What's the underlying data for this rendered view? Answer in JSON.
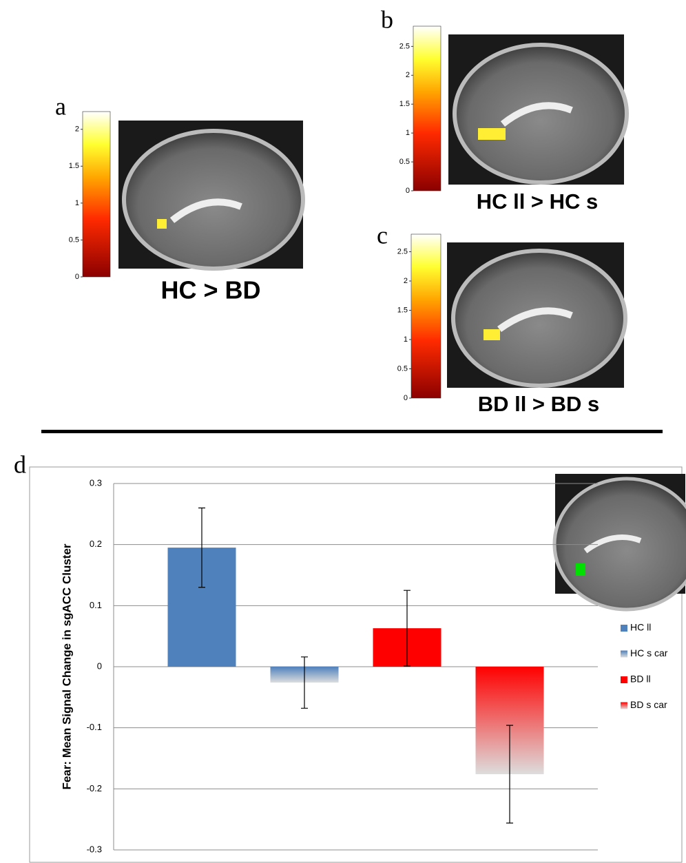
{
  "panels": [
    {
      "label": "a",
      "caption": "HC > BD",
      "colorbar": {
        "lim": [
          0,
          2.24
        ],
        "ticks": [
          0,
          0.5,
          1,
          1.5,
          2
        ]
      }
    },
    {
      "label": "b",
      "caption": "HC ll > HC s",
      "colorbar": {
        "lim": [
          0,
          2.85
        ],
        "ticks": [
          0,
          0.5,
          1,
          1.5,
          2,
          2.5
        ]
      }
    },
    {
      "label": "c",
      "caption": "BD ll > BD s",
      "colorbar": {
        "lim": [
          0,
          2.8
        ],
        "ticks": [
          0,
          0.5,
          1,
          1.5,
          2,
          2.5
        ]
      }
    }
  ],
  "chart_data": {
    "type": "bar",
    "label": "d",
    "y_label": "Fear: Mean Signal Change in sgACC Cluster",
    "ylim": [
      -0.3,
      0.3
    ],
    "yticks": [
      -0.3,
      -0.2,
      -0.1,
      0,
      0.1,
      0.2,
      0.3
    ],
    "grid": true,
    "legend": "right",
    "series": [
      {
        "name": "HC ll",
        "color": "#4f81bd",
        "gradient": false,
        "values": [
          0.195
        ],
        "errors": [
          0.065
        ]
      },
      {
        "name": "HC s car",
        "color": "#4f81bd",
        "gradient": true,
        "values": [
          -0.026
        ],
        "errors": [
          0.042
        ]
      },
      {
        "name": "BD ll",
        "color": "#ff0000",
        "gradient": false,
        "values": [
          0.063
        ],
        "errors": [
          0.062
        ]
      },
      {
        "name": "BD s car",
        "color": "#ff0000",
        "gradient": true,
        "values": [
          -0.176
        ],
        "errors": [
          0.08
        ]
      }
    ]
  }
}
